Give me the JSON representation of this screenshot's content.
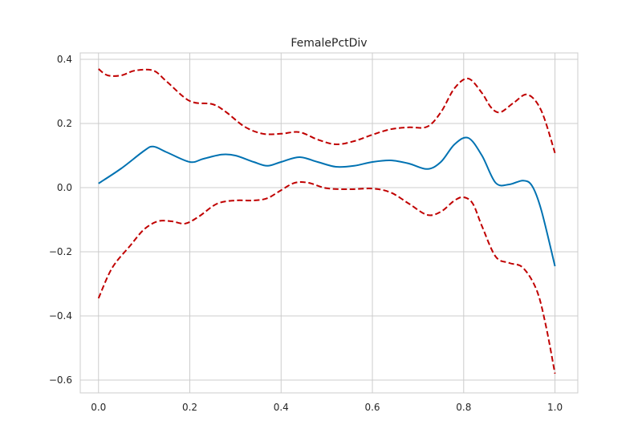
{
  "chart_data": {
    "type": "line",
    "title": "FemalePctDiv",
    "xlabel": "",
    "ylabel": "",
    "xlim": [
      -0.04,
      1.05
    ],
    "ylim": [
      -0.64,
      0.42
    ],
    "xticks": [
      0.0,
      0.2,
      0.4,
      0.6,
      0.8,
      1.0
    ],
    "xtick_labels": [
      "0.0",
      "0.2",
      "0.4",
      "0.6",
      "0.8",
      "1.0"
    ],
    "yticks": [
      0.4,
      0.2,
      0.0,
      -0.2,
      -0.4,
      -0.6
    ],
    "ytick_labels": [
      "0.4",
      "0.2",
      "0.0",
      "−0.2",
      "−0.4",
      "−0.6"
    ],
    "grid": true,
    "legend": "none",
    "series": [
      {
        "role": "center",
        "style": "solid",
        "color": "#0072b2",
        "x": [
          0.0,
          0.05,
          0.1,
          0.12,
          0.15,
          0.2,
          0.23,
          0.27,
          0.3,
          0.34,
          0.37,
          0.4,
          0.44,
          0.48,
          0.52,
          0.56,
          0.6,
          0.64,
          0.68,
          0.72,
          0.75,
          0.78,
          0.81,
          0.84,
          0.87,
          0.9,
          0.93,
          0.95,
          0.97,
          1.0
        ],
        "y": [
          0.013,
          0.06,
          0.115,
          0.128,
          0.11,
          0.08,
          0.09,
          0.103,
          0.1,
          0.08,
          0.068,
          0.08,
          0.095,
          0.08,
          0.065,
          0.068,
          0.08,
          0.085,
          0.075,
          0.058,
          0.08,
          0.135,
          0.155,
          0.1,
          0.015,
          0.01,
          0.022,
          0.005,
          -0.07,
          -0.245
        ]
      },
      {
        "role": "upper-bound",
        "style": "dashed",
        "color": "#c00000",
        "x": [
          0.0,
          0.02,
          0.05,
          0.08,
          0.12,
          0.15,
          0.2,
          0.25,
          0.28,
          0.32,
          0.36,
          0.4,
          0.44,
          0.48,
          0.52,
          0.56,
          0.6,
          0.64,
          0.68,
          0.72,
          0.75,
          0.78,
          0.81,
          0.84,
          0.86,
          0.88,
          0.91,
          0.94,
          0.97,
          1.0
        ],
        "y": [
          0.37,
          0.35,
          0.35,
          0.365,
          0.365,
          0.33,
          0.27,
          0.26,
          0.235,
          0.19,
          0.168,
          0.168,
          0.173,
          0.15,
          0.135,
          0.145,
          0.165,
          0.182,
          0.188,
          0.19,
          0.235,
          0.31,
          0.34,
          0.295,
          0.25,
          0.235,
          0.265,
          0.29,
          0.24,
          0.108
        ]
      },
      {
        "role": "lower-bound",
        "style": "dashed",
        "color": "#c00000",
        "x": [
          0.0,
          0.03,
          0.07,
          0.1,
          0.13,
          0.16,
          0.19,
          0.22,
          0.26,
          0.3,
          0.34,
          0.37,
          0.4,
          0.43,
          0.46,
          0.5,
          0.55,
          0.6,
          0.64,
          0.68,
          0.72,
          0.75,
          0.78,
          0.8,
          0.82,
          0.84,
          0.87,
          0.9,
          0.93,
          0.96,
          0.98,
          1.0
        ],
        "y": [
          -0.345,
          -0.25,
          -0.18,
          -0.13,
          -0.105,
          -0.105,
          -0.112,
          -0.09,
          -0.05,
          -0.04,
          -0.04,
          -0.033,
          -0.008,
          0.015,
          0.015,
          -0.002,
          -0.005,
          -0.003,
          -0.015,
          -0.05,
          -0.085,
          -0.075,
          -0.04,
          -0.03,
          -0.05,
          -0.12,
          -0.215,
          -0.235,
          -0.25,
          -0.32,
          -0.43,
          -0.58
        ]
      }
    ]
  }
}
